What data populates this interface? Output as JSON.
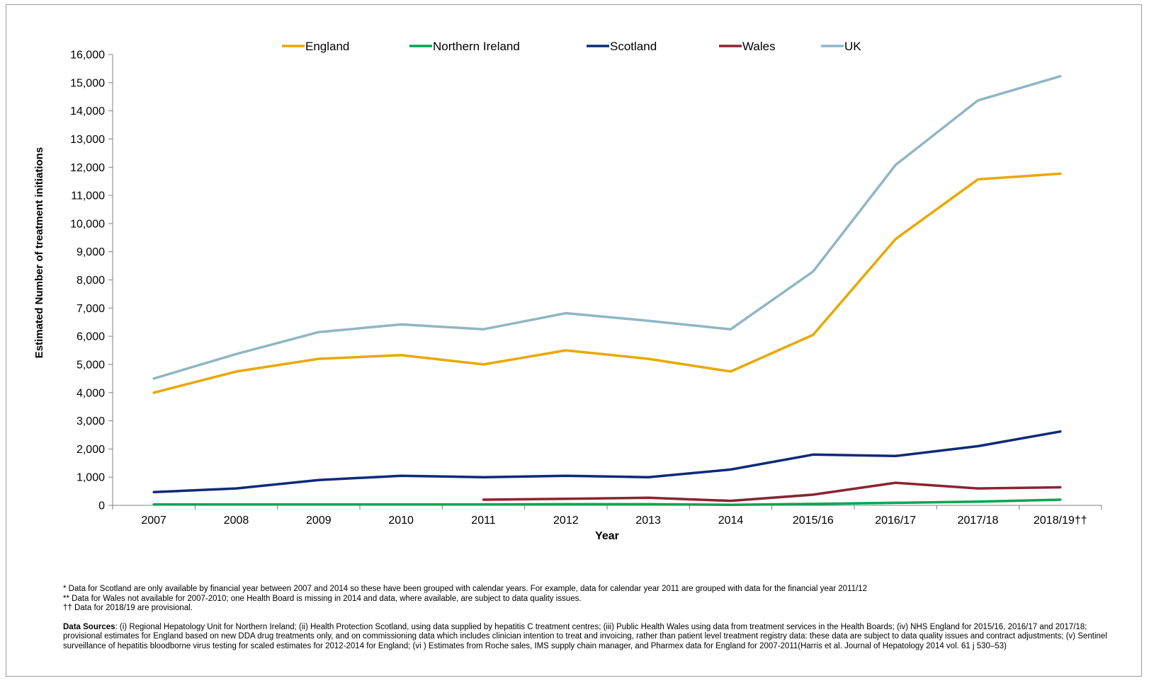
{
  "chart_data": {
    "type": "line",
    "xlabel": "Year",
    "ylabel": "Estimated Number of treatment initiations",
    "ylim": [
      0,
      16000
    ],
    "yticks": [
      0,
      1000,
      2000,
      3000,
      4000,
      5000,
      6000,
      7000,
      8000,
      9000,
      10000,
      11000,
      12000,
      13000,
      14000,
      15000,
      16000
    ],
    "ytick_labels": [
      "0",
      "1,000",
      "2,000",
      "3,000",
      "4,000",
      "5,000",
      "6,000",
      "7,000",
      "8,000",
      "9,000",
      "10,000",
      "11,000",
      "12,000",
      "13,000",
      "14,000",
      "15,000",
      "16,000"
    ],
    "categories": [
      "2007",
      "2008",
      "2009",
      "2010",
      "2011",
      "2012",
      "2013",
      "2014",
      "2015/16",
      "2016/17",
      "2017/18",
      "2018/19††"
    ],
    "grid": false,
    "legend": "top",
    "series": [
      {
        "name": "England",
        "color": "#e8a800",
        "values": [
          4000,
          4750,
          5200,
          5330,
          5000,
          5500,
          5200,
          4750,
          6050,
          9450,
          11570,
          11770
        ]
      },
      {
        "name": "Northern Ireland",
        "color": "#00a651",
        "values": [
          30,
          30,
          30,
          30,
          30,
          40,
          40,
          20,
          50,
          90,
          130,
          200
        ]
      },
      {
        "name": "Scotland",
        "color": "#0c2a7a",
        "values": [
          470,
          600,
          900,
          1050,
          1000,
          1050,
          1000,
          1270,
          1800,
          1750,
          2100,
          2620
        ]
      },
      {
        "name": "Wales",
        "color": "#8b2332",
        "values": [
          null,
          null,
          null,
          null,
          200,
          230,
          270,
          160,
          380,
          800,
          600,
          640
        ]
      },
      {
        "name": "UK",
        "color": "#8fb6c4",
        "values": [
          4500,
          5370,
          6150,
          6420,
          6250,
          6820,
          6550,
          6250,
          8300,
          12080,
          14370,
          15230
        ]
      }
    ]
  },
  "footnotes": [
    "* Data for Scotland are only available by financial year between 2007 and 2014 so these have been grouped with calendar years. For example, data for calendar year 2011 are grouped with data for the financial year 2011/12",
    "**  Data for Wales not available for 2007-2010; one Health Board is missing in 2014 and data, where available, are subject to data quality issues.",
    "†† Data for 2018/19 are provisional."
  ],
  "sources": {
    "label": "Data Sources",
    "text": ": (i) Regional Hepatology Unit for Northern Ireland; (ii) Health Protection Scotland, using data supplied by hepatitis C treatment centres; (iii) Public Health Wales using data from treatment services in the Health Boards; (iv) NHS England for 2015/16, 2016/17 and 2017/18; provisional estimates for England based on new DDA drug treatments only, and on commissioning data which includes clinician intention to treat and invoicing, rather than patient level treatment registry data: these data are subject to data quality issues and contract adjustments; (v) Sentinel surveillance of hepatitis bloodborne virus testing for scaled estimates for 2012-2014 for England; (vi ) Estimates from Roche sales, IMS supply chain manager, and Pharmex data for England for 2007-2011(Harris et al. Journal of Hepatology 2014 vol. 61 j 530–53)"
  }
}
